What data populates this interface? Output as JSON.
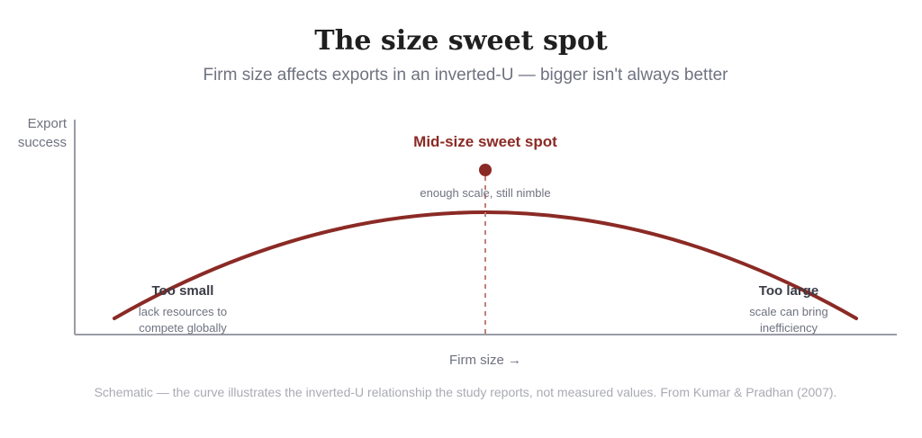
{
  "title": "The size sweet spot",
  "subtitle": "Firm size affects exports in an inverted-U — bigger isn't always better",
  "axes": {
    "y_label_line1": "Export",
    "y_label_line2": "success",
    "x_label": "Firm size →"
  },
  "peak": {
    "title": "Mid-size sweet spot",
    "note": "enough scale, still nimble"
  },
  "left_end": {
    "title": "Too small",
    "note_line1": "lack resources to",
    "note_line2": "compete globally"
  },
  "right_end": {
    "title": "Too large",
    "note_line1": "scale can bring",
    "note_line2": "inefficiency"
  },
  "footnote": "Schematic — the curve illustrates the inverted-U relationship the study reports, not measured values. From Kumar & Pradhan (2007).",
  "colors": {
    "curve": "#8b2a25",
    "axis": "#9a9ca6",
    "text_muted": "#6f7280"
  }
}
